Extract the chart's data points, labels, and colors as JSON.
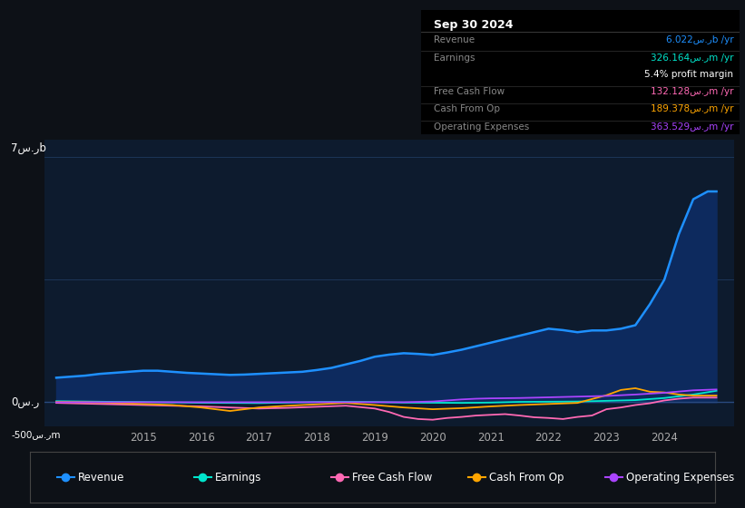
{
  "bg_color": "#0d1117",
  "plot_bg_color": "#0d1b2e",
  "grid_color": "#1e3a5f",
  "title_box": {
    "date": "Sep 30 2024",
    "rows": [
      {
        "label": "Revenue",
        "value": "6.022س.رb /yr",
        "color": "#1e90ff"
      },
      {
        "label": "Earnings",
        "value": "326.164س.رm /yr",
        "color": "#00e5cc"
      },
      {
        "label": "",
        "value": "5.4% profit margin",
        "color": "#ffffff"
      },
      {
        "label": "Free Cash Flow",
        "value": "132.128س.رm /yr",
        "color": "#ff69b4"
      },
      {
        "label": "Cash From Op",
        "value": "189.378س.رm /yr",
        "color": "#ffa500"
      },
      {
        "label": "Operating Expenses",
        "value": "363.529س.رm /yr",
        "color": "#aa44ff"
      }
    ]
  },
  "y_label_top": "7س.رb",
  "y_label_zero": "0س.ر",
  "y_label_neg": "-500س.رm",
  "x_ticks": [
    2015,
    2016,
    2017,
    2018,
    2019,
    2020,
    2021,
    2022,
    2023,
    2024
  ],
  "xlim": [
    2013.3,
    2025.2
  ],
  "ylim": [
    -700,
    7500
  ],
  "series": {
    "revenue": {
      "color": "#1e90ff",
      "fill_color": "#0d2a5e",
      "values_x": [
        2013.5,
        2014.0,
        2014.25,
        2014.5,
        2014.75,
        2015.0,
        2015.25,
        2015.5,
        2015.75,
        2016.0,
        2016.25,
        2016.5,
        2016.75,
        2017.0,
        2017.25,
        2017.5,
        2017.75,
        2018.0,
        2018.25,
        2018.5,
        2018.75,
        2019.0,
        2019.25,
        2019.5,
        2019.75,
        2020.0,
        2020.25,
        2020.5,
        2020.75,
        2021.0,
        2021.25,
        2021.5,
        2021.75,
        2022.0,
        2022.25,
        2022.5,
        2022.75,
        2023.0,
        2023.25,
        2023.5,
        2023.75,
        2024.0,
        2024.25,
        2024.5,
        2024.75,
        2024.9
      ],
      "values_y": [
        700,
        760,
        810,
        840,
        870,
        900,
        900,
        870,
        840,
        820,
        800,
        780,
        790,
        810,
        830,
        850,
        870,
        920,
        980,
        1080,
        1180,
        1300,
        1360,
        1400,
        1380,
        1350,
        1420,
        1500,
        1600,
        1700,
        1800,
        1900,
        2000,
        2100,
        2060,
        2000,
        2050,
        2050,
        2100,
        2200,
        2800,
        3500,
        4800,
        5800,
        6022,
        6022
      ]
    },
    "earnings": {
      "color": "#00e5cc",
      "values_x": [
        2013.5,
        2014.0,
        2014.5,
        2015.0,
        2015.5,
        2016.0,
        2016.5,
        2017.0,
        2017.5,
        2018.0,
        2018.5,
        2019.0,
        2019.5,
        2020.0,
        2020.5,
        2021.0,
        2021.5,
        2022.0,
        2022.5,
        2023.0,
        2023.5,
        2024.0,
        2024.5,
        2024.9
      ],
      "values_y": [
        30,
        20,
        10,
        5,
        -5,
        -15,
        -20,
        -25,
        -10,
        5,
        10,
        5,
        -10,
        -15,
        -20,
        -10,
        10,
        15,
        20,
        40,
        60,
        120,
        220,
        326
      ]
    },
    "free_cash_flow": {
      "color": "#ff69b4",
      "values_x": [
        2013.5,
        2014.0,
        2014.5,
        2015.0,
        2015.5,
        2016.0,
        2016.5,
        2017.0,
        2017.5,
        2018.0,
        2018.5,
        2019.0,
        2019.25,
        2019.5,
        2019.75,
        2020.0,
        2020.25,
        2020.5,
        2020.75,
        2021.0,
        2021.25,
        2021.5,
        2021.75,
        2022.0,
        2022.25,
        2022.5,
        2022.75,
        2023.0,
        2023.25,
        2023.5,
        2023.75,
        2024.0,
        2024.25,
        2024.5,
        2024.9
      ],
      "values_y": [
        -20,
        -40,
        -60,
        -80,
        -100,
        -120,
        -150,
        -180,
        -160,
        -130,
        -100,
        -180,
        -280,
        -420,
        -480,
        -500,
        -450,
        -420,
        -380,
        -360,
        -340,
        -380,
        -430,
        -450,
        -480,
        -420,
        -380,
        -200,
        -150,
        -80,
        -30,
        50,
        100,
        132,
        132
      ]
    },
    "cash_from_op": {
      "color": "#ffa500",
      "values_x": [
        2013.5,
        2014.0,
        2014.5,
        2015.0,
        2015.5,
        2016.0,
        2016.25,
        2016.5,
        2016.75,
        2017.0,
        2017.5,
        2018.0,
        2018.5,
        2019.0,
        2019.5,
        2020.0,
        2020.5,
        2021.0,
        2021.5,
        2022.0,
        2022.5,
        2023.0,
        2023.25,
        2023.5,
        2023.75,
        2024.0,
        2024.25,
        2024.5,
        2024.9
      ],
      "values_y": [
        10,
        0,
        -20,
        -50,
        -80,
        -150,
        -200,
        -250,
        -200,
        -150,
        -100,
        -60,
        -20,
        -80,
        -150,
        -200,
        -170,
        -120,
        -80,
        -50,
        -20,
        200,
        350,
        400,
        300,
        280,
        220,
        189,
        189
      ]
    },
    "operating_expenses": {
      "color": "#aa44ff",
      "values_x": [
        2013.5,
        2014.0,
        2014.5,
        2015.0,
        2015.5,
        2016.0,
        2016.5,
        2017.0,
        2017.5,
        2018.0,
        2018.5,
        2019.0,
        2019.5,
        2020.0,
        2020.25,
        2020.5,
        2020.75,
        2021.0,
        2021.5,
        2022.0,
        2022.5,
        2023.0,
        2023.5,
        2024.0,
        2024.5,
        2024.9
      ],
      "values_y": [
        0,
        0,
        0,
        0,
        0,
        0,
        0,
        0,
        0,
        0,
        0,
        0,
        0,
        20,
        50,
        80,
        100,
        110,
        120,
        140,
        160,
        180,
        220,
        270,
        340,
        364
      ]
    }
  },
  "legend": [
    {
      "label": "Revenue",
      "color": "#1e90ff"
    },
    {
      "label": "Earnings",
      "color": "#00e5cc"
    },
    {
      "label": "Free Cash Flow",
      "color": "#ff69b4"
    },
    {
      "label": "Cash From Op",
      "color": "#ffa500"
    },
    {
      "label": "Operating Expenses",
      "color": "#aa44ff"
    }
  ]
}
